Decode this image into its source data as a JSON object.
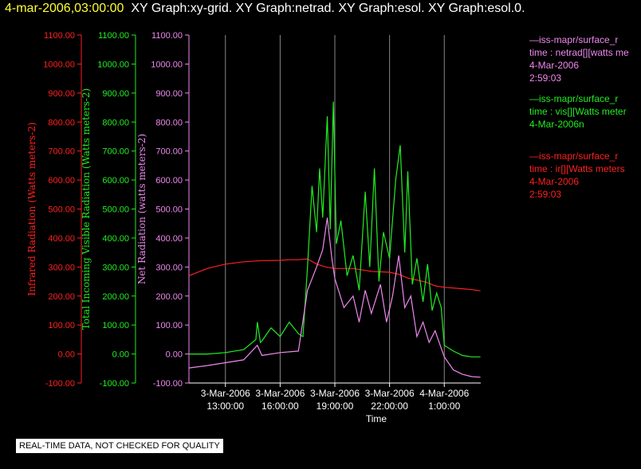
{
  "header": {
    "time": "4-mar-2006,03:00:00",
    "graphs": "XY Graph:xy-grid.  XY Graph:netrad.  XY Graph:esol.  XY Graph:esol.0."
  },
  "notice": "REAL-TIME DATA, NOT CHECKED FOR QUALITY",
  "colors": {
    "ir": "#ff2020",
    "vis": "#22ee22",
    "net": "#ee88ee",
    "grid": "#ffffff",
    "axis": "#ffffff",
    "bg": "#000000"
  },
  "legends": [
    {
      "color": "#ee88ee",
      "lines": [
        "—iss-mapr/surface_r",
        "time : netrad[][watts me",
        "4-Mar-2006",
        "2:59:03"
      ]
    },
    {
      "color": "#22ee22",
      "lines": [
        "—iss-mapr/surface_r",
        "time : vis[][Watts meter",
        "4-Mar-2006n"
      ]
    },
    {
      "color": "#ff2020",
      "lines": [
        "—iss-mapr/surface_r",
        "time : ir[][Watts meters",
        "4-Mar-2006",
        "2:59:03"
      ]
    }
  ],
  "chart_data": {
    "type": "line",
    "xlabel": "Time",
    "x_range": [
      "2006-03-03 11:00",
      "2006-03-04 03:00"
    ],
    "x_ticks": [
      {
        "t": "2006-03-03 13:00",
        "date": "3-Mar-2006",
        "time": "13:00:00"
      },
      {
        "t": "2006-03-03 16:00",
        "date": "3-Mar-2006",
        "time": "16:00:00"
      },
      {
        "t": "2006-03-03 19:00",
        "date": "3-Mar-2006",
        "time": "19:00:00"
      },
      {
        "t": "2006-03-03 22:00",
        "date": "3-Mar-2006",
        "time": "22:00:00"
      },
      {
        "t": "2006-03-04 01:00",
        "date": "4-Mar-2006",
        "time": "1:00:00"
      }
    ],
    "grid": "vertical lines at x ticks",
    "y_axes": [
      {
        "id": "ir",
        "label": "Infrared Radiation (Watts meters-2)",
        "color": "#ff2020",
        "ylim": [
          -100,
          1100
        ],
        "ticks": [
          "-100.00",
          "0.00",
          "100.00",
          "200.00",
          "300.00",
          "400.00",
          "500.00",
          "600.00",
          "700.00",
          "800.00",
          "900.00",
          "1000.00",
          "1100.00"
        ]
      },
      {
        "id": "vis",
        "label": "Total Incoming Visible Radiation (Watts meters-2)",
        "color": "#22ee22",
        "ylim": [
          -100,
          1100
        ],
        "ticks": [
          "-100.00",
          "0.00",
          "100.00",
          "200.00",
          "300.00",
          "400.00",
          "500.00",
          "600.00",
          "700.00",
          "800.00",
          "900.00",
          "1000.00",
          "1100.00"
        ]
      },
      {
        "id": "net",
        "label": "Net Radiation (watts meters-2)",
        "color": "#ee88ee",
        "ylim": [
          -100,
          1100
        ],
        "ticks": [
          "-100.00",
          "0.00",
          "100.00",
          "200.00",
          "300.00",
          "400.00",
          "500.00",
          "600.00",
          "700.00",
          "800.00",
          "900.00",
          "1000.00",
          "1100.00"
        ]
      }
    ],
    "series": [
      {
        "id": "ir",
        "color": "#ff2020",
        "points": [
          [
            "2006-03-03 11:00",
            270
          ],
          [
            "2006-03-03 12:00",
            295
          ],
          [
            "2006-03-03 13:00",
            310
          ],
          [
            "2006-03-03 14:00",
            318
          ],
          [
            "2006-03-03 15:00",
            322
          ],
          [
            "2006-03-03 16:00",
            323
          ],
          [
            "2006-03-03 16:30",
            325
          ],
          [
            "2006-03-03 17:00",
            325
          ],
          [
            "2006-03-03 17:30",
            328
          ],
          [
            "2006-03-03 18:00",
            310
          ],
          [
            "2006-03-03 18:30",
            300
          ],
          [
            "2006-03-03 19:00",
            295
          ],
          [
            "2006-03-03 20:00",
            295
          ],
          [
            "2006-03-03 21:00",
            285
          ],
          [
            "2006-03-03 22:00",
            282
          ],
          [
            "2006-03-03 22:30",
            275
          ],
          [
            "2006-03-03 23:00",
            262
          ],
          [
            "2006-03-03 23:30",
            255
          ],
          [
            "2006-03-04 00:00",
            248
          ],
          [
            "2006-03-04 00:30",
            235
          ],
          [
            "2006-03-04 01:00",
            230
          ],
          [
            "2006-03-04 02:00",
            225
          ],
          [
            "2006-03-04 02:30",
            222
          ],
          [
            "2006-03-04 02:59",
            218
          ]
        ]
      },
      {
        "id": "vis",
        "color": "#22ee22",
        "points": [
          [
            "2006-03-03 11:00",
            0
          ],
          [
            "2006-03-03 12:00",
            0
          ],
          [
            "2006-03-03 13:00",
            5
          ],
          [
            "2006-03-03 14:00",
            15
          ],
          [
            "2006-03-03 14:40",
            50
          ],
          [
            "2006-03-03 14:45",
            110
          ],
          [
            "2006-03-03 14:55",
            40
          ],
          [
            "2006-03-03 15:00",
            45
          ],
          [
            "2006-03-03 15:30",
            90
          ],
          [
            "2006-03-03 16:00",
            60
          ],
          [
            "2006-03-03 16:30",
            110
          ],
          [
            "2006-03-03 17:00",
            70
          ],
          [
            "2006-03-03 17:15",
            60
          ],
          [
            "2006-03-03 17:30",
            300
          ],
          [
            "2006-03-03 17:45",
            580
          ],
          [
            "2006-03-03 18:00",
            420
          ],
          [
            "2006-03-03 18:10",
            640
          ],
          [
            "2006-03-03 18:20",
            470
          ],
          [
            "2006-03-03 18:35",
            820
          ],
          [
            "2006-03-03 18:45",
            430
          ],
          [
            "2006-03-03 18:55",
            870
          ],
          [
            "2006-03-03 19:05",
            380
          ],
          [
            "2006-03-03 19:20",
            460
          ],
          [
            "2006-03-03 19:40",
            270
          ],
          [
            "2006-03-03 20:00",
            340
          ],
          [
            "2006-03-03 20:20",
            220
          ],
          [
            "2006-03-03 20:40",
            560
          ],
          [
            "2006-03-03 20:55",
            300
          ],
          [
            "2006-03-03 21:10",
            640
          ],
          [
            "2006-03-03 21:25",
            250
          ],
          [
            "2006-03-03 21:40",
            420
          ],
          [
            "2006-03-03 22:00",
            330
          ],
          [
            "2006-03-03 22:20",
            600
          ],
          [
            "2006-03-03 22:35",
            720
          ],
          [
            "2006-03-03 22:50",
            350
          ],
          [
            "2006-03-03 23:00",
            630
          ],
          [
            "2006-03-03 23:15",
            240
          ],
          [
            "2006-03-03 23:30",
            330
          ],
          [
            "2006-03-03 23:50",
            180
          ],
          [
            "2006-03-04 00:05",
            310
          ],
          [
            "2006-03-04 00:20",
            150
          ],
          [
            "2006-03-04 00:35",
            210
          ],
          [
            "2006-03-04 00:50",
            160
          ],
          [
            "2006-03-04 01:00",
            30
          ],
          [
            "2006-03-04 01:30",
            10
          ],
          [
            "2006-03-04 02:00",
            -5
          ],
          [
            "2006-03-04 02:30",
            -10
          ],
          [
            "2006-03-04 02:59",
            -10
          ]
        ]
      },
      {
        "id": "net",
        "color": "#ee88ee",
        "points": [
          [
            "2006-03-03 11:00",
            -48
          ],
          [
            "2006-03-03 12:00",
            -40
          ],
          [
            "2006-03-03 13:00",
            -30
          ],
          [
            "2006-03-03 14:00",
            -20
          ],
          [
            "2006-03-03 14:45",
            30
          ],
          [
            "2006-03-03 15:00",
            -5
          ],
          [
            "2006-03-03 16:00",
            5
          ],
          [
            "2006-03-03 17:00",
            10
          ],
          [
            "2006-03-03 17:30",
            220
          ],
          [
            "2006-03-03 18:00",
            300
          ],
          [
            "2006-03-03 18:20",
            360
          ],
          [
            "2006-03-03 18:35",
            470
          ],
          [
            "2006-03-03 18:50",
            330
          ],
          [
            "2006-03-03 19:00",
            260
          ],
          [
            "2006-03-03 19:30",
            160
          ],
          [
            "2006-03-03 20:00",
            200
          ],
          [
            "2006-03-03 20:20",
            110
          ],
          [
            "2006-03-03 20:40",
            220
          ],
          [
            "2006-03-03 21:00",
            140
          ],
          [
            "2006-03-03 21:30",
            240
          ],
          [
            "2006-03-03 21:50",
            110
          ],
          [
            "2006-03-03 22:10",
            200
          ],
          [
            "2006-03-03 22:30",
            340
          ],
          [
            "2006-03-03 22:50",
            160
          ],
          [
            "2006-03-03 23:10",
            200
          ],
          [
            "2006-03-03 23:30",
            60
          ],
          [
            "2006-03-03 23:50",
            110
          ],
          [
            "2006-03-04 00:10",
            40
          ],
          [
            "2006-03-04 00:30",
            80
          ],
          [
            "2006-03-04 00:50",
            20
          ],
          [
            "2006-03-04 01:00",
            -10
          ],
          [
            "2006-03-04 01:30",
            -55
          ],
          [
            "2006-03-04 02:00",
            -70
          ],
          [
            "2006-03-04 02:30",
            -78
          ],
          [
            "2006-03-04 02:59",
            -80
          ]
        ]
      }
    ]
  }
}
